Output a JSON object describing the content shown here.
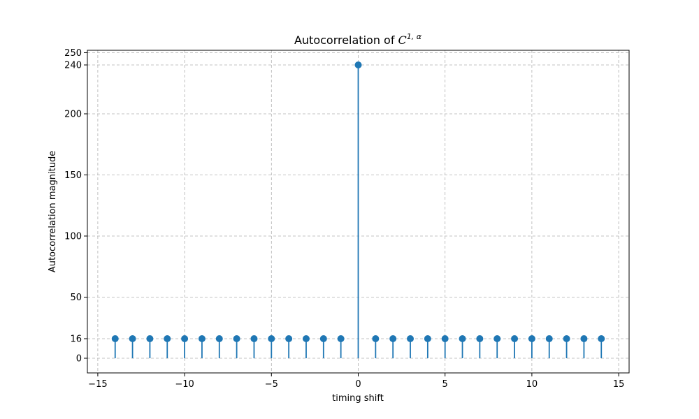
{
  "chart_data": {
    "type": "stem",
    "title_main": "Autocorrelation of ",
    "title_math": "C",
    "title_superscript": "1, α",
    "xlabel": "timing shift",
    "ylabel": "Autocorrelation magnitude",
    "xlim": [
      -15.6,
      15.6
    ],
    "ylim": [
      -12,
      252
    ],
    "xticks": [
      -15,
      -10,
      -5,
      0,
      5,
      10,
      15
    ],
    "xtick_labels": [
      "−15",
      "−10",
      "−5",
      "0",
      "5",
      "10",
      "15"
    ],
    "yticks": [
      0,
      16,
      50,
      100,
      150,
      200,
      240,
      250
    ],
    "ytick_labels": [
      "0",
      "16",
      "50",
      "100",
      "150",
      "200",
      "240",
      "250"
    ],
    "grid": true,
    "color": "#1f77b4",
    "x": [
      -14,
      -13,
      -12,
      -11,
      -10,
      -9,
      -8,
      -7,
      -6,
      -5,
      -4,
      -3,
      -2,
      -1,
      0,
      1,
      2,
      3,
      4,
      5,
      6,
      7,
      8,
      9,
      10,
      11,
      12,
      13,
      14
    ],
    "y": [
      16,
      16,
      16,
      16,
      16,
      16,
      16,
      16,
      16,
      16,
      16,
      16,
      16,
      16,
      240,
      16,
      16,
      16,
      16,
      16,
      16,
      16,
      16,
      16,
      16,
      16,
      16,
      16,
      16
    ]
  }
}
